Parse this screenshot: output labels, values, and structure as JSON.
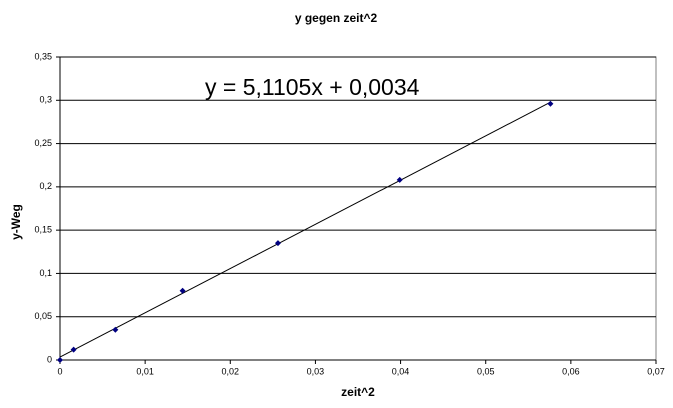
{
  "chart_data": {
    "type": "scatter",
    "title": "y gegen zeit^2",
    "x_label": "zeit^2",
    "y_label": "y-Weg",
    "series": [
      {
        "color": "#000080",
        "x": [
          0,
          0.0016,
          0.0065,
          0.0144,
          0.0256,
          0.0399,
          0.0576
        ],
        "values": [
          0,
          0.012,
          0.035,
          0.08,
          0.135,
          0.208,
          0.296
        ]
      }
    ],
    "trendline": {
      "slope": 5.1105,
      "intercept": 0.0034,
      "label": "y = 5,1105x  + 0,0034",
      "color": "#000000"
    },
    "xlim": [
      0,
      0.07
    ],
    "xticks": [
      0,
      {
        "value": 0.01,
        "label": "0,01"
      },
      {
        "value": 0.02,
        "label": "0,02"
      },
      {
        "value": 0.03,
        "label": "0,03"
      },
      {
        "value": 0.04,
        "label": "0,04"
      },
      {
        "value": 0.05,
        "label": "0,05"
      },
      {
        "value": 0.06,
        "label": "0,06"
      },
      {
        "value": 0.07,
        "label": "0,07"
      }
    ],
    "ylim": [
      0,
      0.35
    ],
    "yticks": [
      0,
      {
        "value": 0.05,
        "label": "0,05"
      },
      {
        "value": 0.1,
        "label": "0,1"
      },
      {
        "value": 0.15,
        "label": "0,15"
      },
      {
        "value": 0.2,
        "label": "0,2"
      },
      {
        "value": 0.25,
        "label": "0,25"
      },
      {
        "value": 0.3,
        "label": "0,3"
      },
      {
        "value": 0.35,
        "label": "0,35"
      }
    ],
    "grid": true
  }
}
